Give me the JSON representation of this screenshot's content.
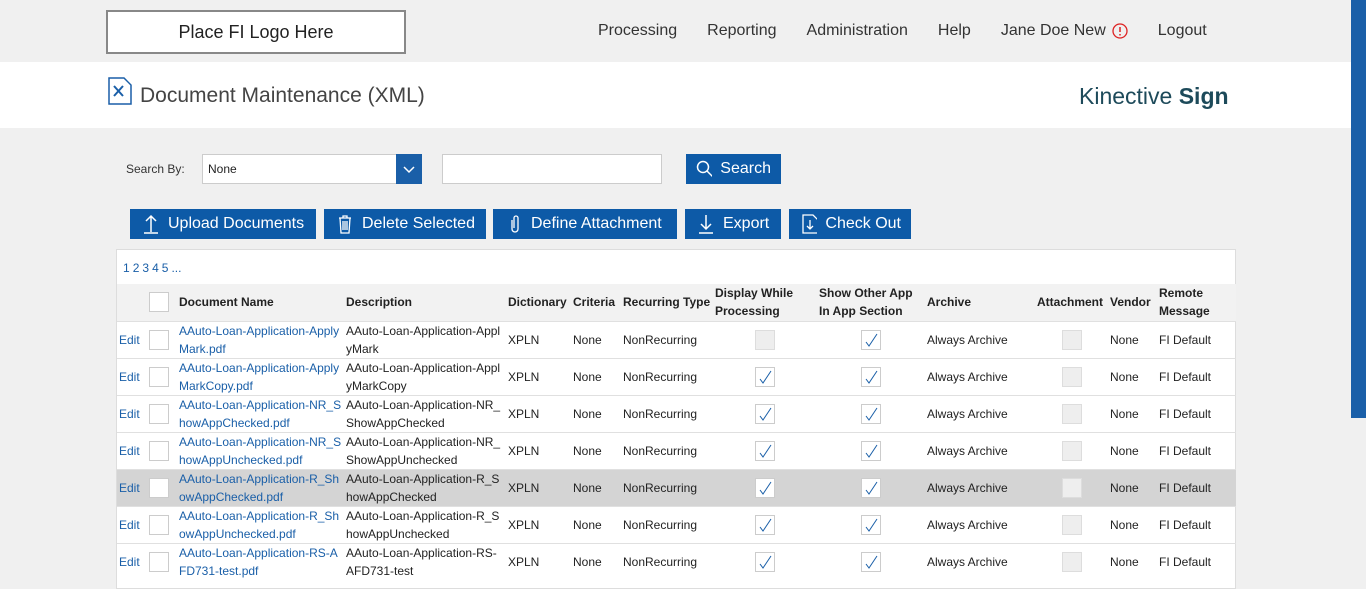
{
  "header": {
    "logo": "Place FI Logo Here",
    "nav": [
      "Processing",
      "Reporting",
      "Administration",
      "Help",
      "Jane Doe New",
      "Logout"
    ]
  },
  "page": {
    "title": "Document Maintenance (XML)",
    "brand_light": "Kinective",
    "brand_bold": "Sign"
  },
  "search": {
    "label": "Search By:",
    "select": "None",
    "button": "Search"
  },
  "toolbar": [
    "Upload Documents",
    "Delete Selected",
    "Define Attachment",
    "Export",
    "Check Out"
  ],
  "pagination": [
    "1",
    "2",
    "3",
    "4",
    "5",
    "..."
  ],
  "table": {
    "columns": [
      "Document Name",
      "Description",
      "Dictionary",
      "Criteria",
      "Recurring Type",
      "Display While Processing",
      "Show Other App In App Section",
      "Archive",
      "Attachment",
      "Vendor",
      "Remote Message"
    ],
    "rows": [
      {
        "action": "Edit",
        "name": "AAuto-Loan-Application-ApplyMark.pdf",
        "description": "AAuto-Loan-Application-ApplyMark",
        "dictionary": "XPLN",
        "criteria": "None",
        "recurring": "NonRecurring",
        "display": false,
        "show_other": true,
        "archive": "Always Archive",
        "attachment": false,
        "vendor": "None",
        "remote": "FI Default",
        "selected": false
      },
      {
        "action": "Edit",
        "name": "AAuto-Loan-Application-ApplyMarkCopy.pdf",
        "description": "AAuto-Loan-Application-ApplyMarkCopy",
        "dictionary": "XPLN",
        "criteria": "None",
        "recurring": "NonRecurring",
        "display": true,
        "show_other": true,
        "archive": "Always Archive",
        "attachment": false,
        "vendor": "None",
        "remote": "FI Default",
        "selected": false
      },
      {
        "action": "Edit",
        "name": "AAuto-Loan-Application-NR_ShowAppChecked.pdf",
        "description": "AAuto-Loan-Application-NR_ShowAppChecked",
        "dictionary": "XPLN",
        "criteria": "None",
        "recurring": "NonRecurring",
        "display": true,
        "show_other": true,
        "archive": "Always Archive",
        "attachment": false,
        "vendor": "None",
        "remote": "FI Default",
        "selected": false
      },
      {
        "action": "Edit",
        "name": "AAuto-Loan-Application-NR_ShowAppUnchecked.pdf",
        "description": "AAuto-Loan-Application-NR_ShowAppUnchecked",
        "dictionary": "XPLN",
        "criteria": "None",
        "recurring": "NonRecurring",
        "display": true,
        "show_other": true,
        "archive": "Always Archive",
        "attachment": false,
        "vendor": "None",
        "remote": "FI Default",
        "selected": false
      },
      {
        "action": "Edit",
        "name": "AAuto-Loan-Application-R_ShowAppChecked.pdf",
        "description": "AAuto-Loan-Application-R_ShowAppChecked",
        "dictionary": "XPLN",
        "criteria": "None",
        "recurring": "NonRecurring",
        "display": true,
        "show_other": true,
        "archive": "Always Archive",
        "attachment": false,
        "vendor": "None",
        "remote": "FI Default",
        "selected": true
      },
      {
        "action": "Edit",
        "name": "AAuto-Loan-Application-R_ShowAppUnchecked.pdf",
        "description": "AAuto-Loan-Application-R_ShowAppUnchecked",
        "dictionary": "XPLN",
        "criteria": "None",
        "recurring": "NonRecurring",
        "display": true,
        "show_other": true,
        "archive": "Always Archive",
        "attachment": false,
        "vendor": "None",
        "remote": "FI Default",
        "selected": false
      },
      {
        "action": "Edit",
        "name": "AAuto-Loan-Application-RS-AFD731-test.pdf",
        "description": "AAuto-Loan-Application-RS-AFD731-test",
        "dictionary": "XPLN",
        "criteria": "None",
        "recurring": "NonRecurring",
        "display": true,
        "show_other": true,
        "archive": "Always Archive",
        "attachment": false,
        "vendor": "None",
        "remote": "FI Default",
        "selected": false
      }
    ]
  }
}
